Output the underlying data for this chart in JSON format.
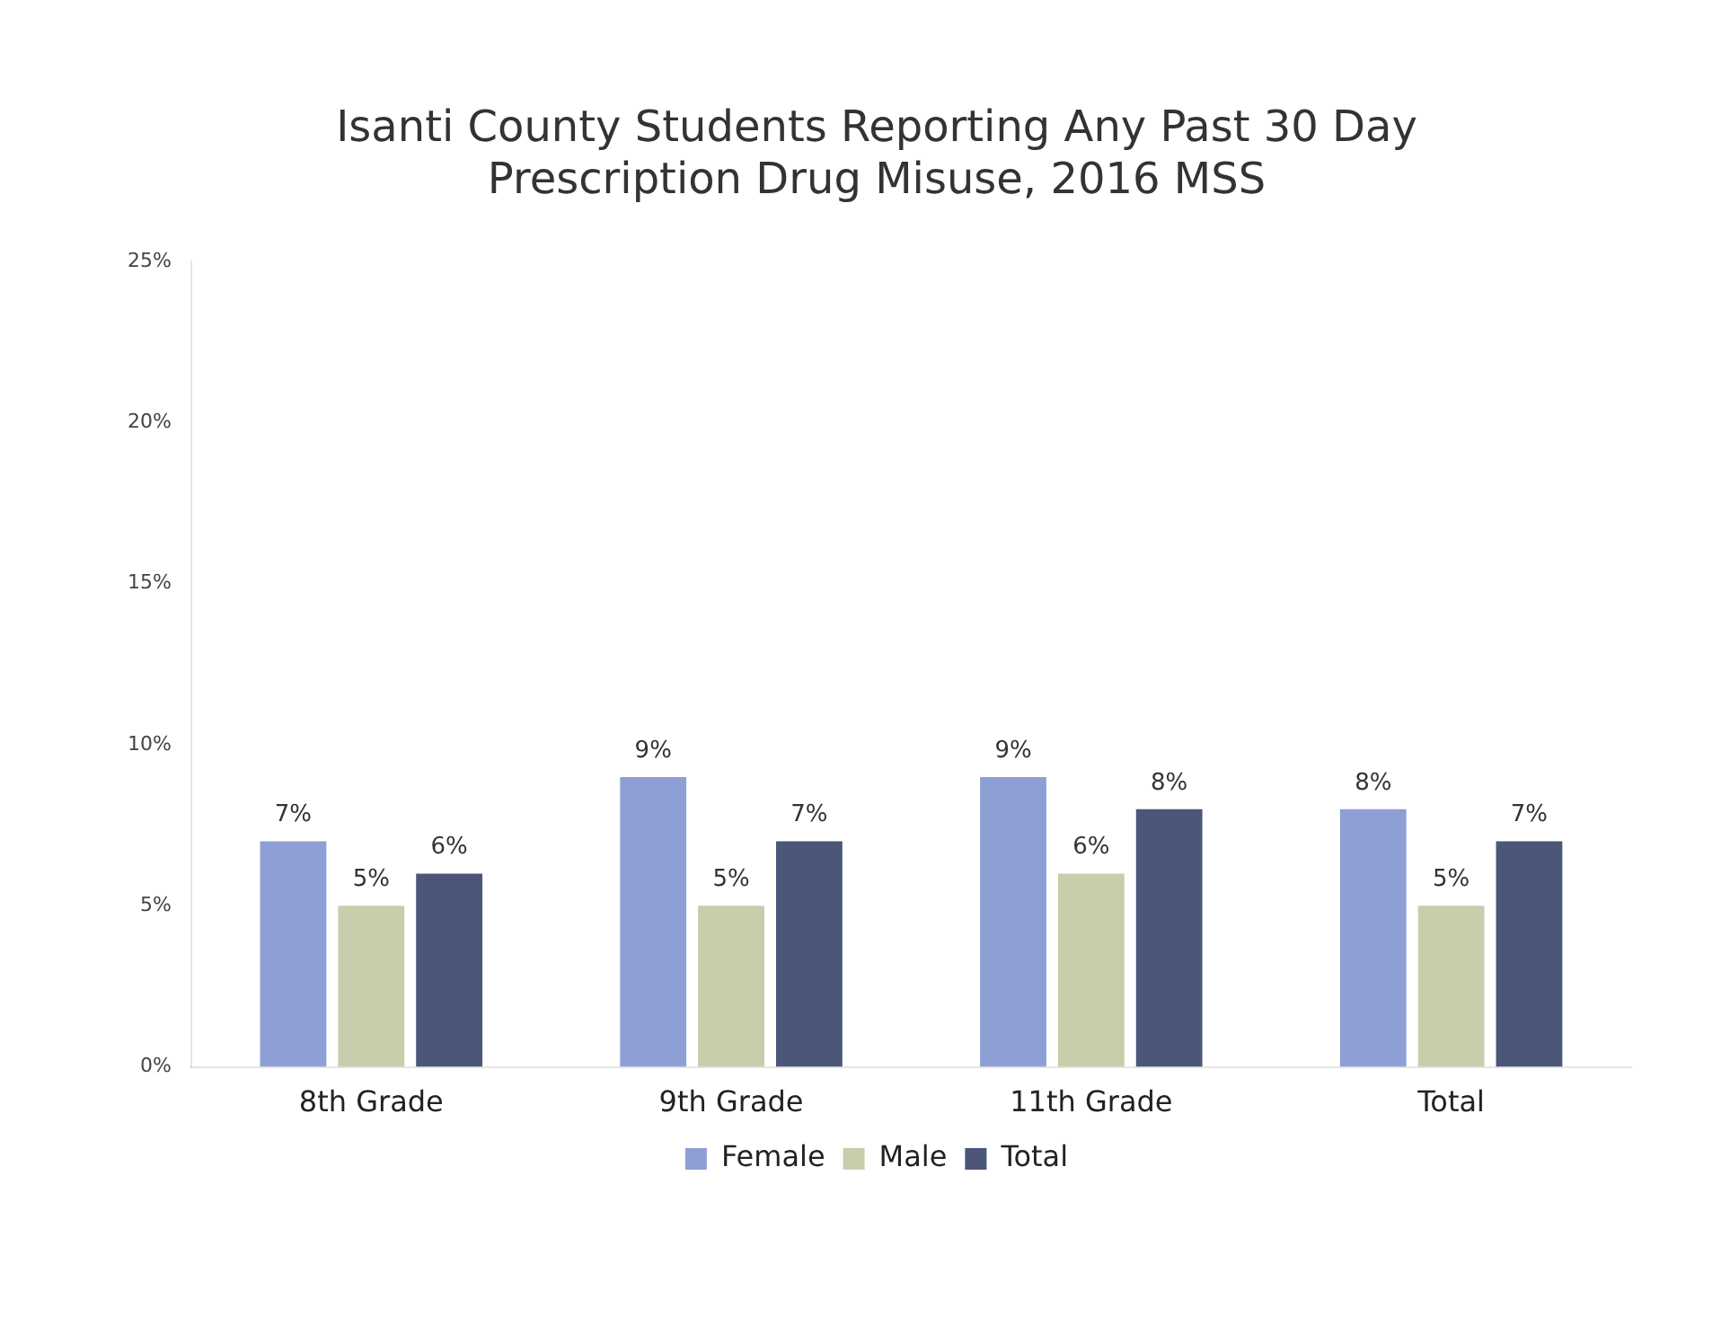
{
  "chart_data": {
    "type": "bar",
    "title": "Isanti County Students Reporting Any Past 30 Day\nPrescription Drug Misuse, 2016 MSS",
    "categories": [
      "8th Grade",
      "9th Grade",
      "11th Grade",
      "Total"
    ],
    "series": [
      {
        "name": "Female",
        "color": "#8e9fd6",
        "values": [
          7,
          9,
          9,
          8
        ],
        "value_labels": [
          "7%",
          "9%",
          "9%",
          "8%"
        ]
      },
      {
        "name": "Male",
        "color": "#c9cdab",
        "values": [
          5,
          5,
          6,
          5
        ],
        "value_labels": [
          "5%",
          "5%",
          "6%",
          "5%"
        ]
      },
      {
        "name": "Total",
        "color": "#4b5679",
        "values": [
          6,
          7,
          8,
          7
        ],
        "value_labels": [
          "6%",
          "7%",
          "8%",
          "7%"
        ]
      }
    ],
    "ylim": [
      0,
      25
    ],
    "yticks": [
      {
        "value": 0,
        "label": "0%"
      },
      {
        "value": 5,
        "label": "5%"
      },
      {
        "value": 10,
        "label": "10%"
      },
      {
        "value": 15,
        "label": "15%"
      },
      {
        "value": 20,
        "label": "20%"
      },
      {
        "value": 25,
        "label": "25%"
      }
    ],
    "grid": false,
    "legend": "bottom"
  }
}
